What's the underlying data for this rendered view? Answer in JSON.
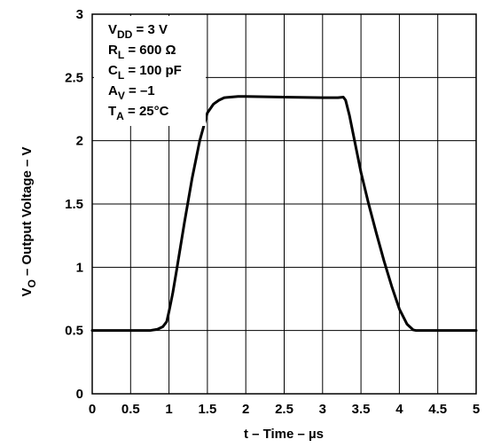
{
  "chart_data": {
    "type": "line",
    "title": "",
    "xlabel": "t – Time – µs",
    "ylabel": {
      "prefix": "V",
      "sub": "O",
      "rest": " – Output Voltage – V"
    },
    "xlim": [
      0,
      5
    ],
    "ylim": [
      0,
      3
    ],
    "x_ticks": [
      "0",
      "0.5",
      "1",
      "1.5",
      "2",
      "2.5",
      "3",
      "3.5",
      "4",
      "4.5",
      "5"
    ],
    "y_ticks": [
      "0",
      "0.5",
      "1",
      "1.5",
      "2",
      "2.5",
      "3"
    ],
    "grid": true,
    "annotations": [
      {
        "main": "V",
        "sub": "DD",
        "rest": " = 3 V"
      },
      {
        "main": "R",
        "sub": "L",
        "rest": " = 600 Ω"
      },
      {
        "main": "C",
        "sub": "L",
        "rest": " = 100  pF"
      },
      {
        "main": "A",
        "sub": "V",
        "rest": " = –1"
      },
      {
        "main": "T",
        "sub": "A",
        "rest": " = 25°C"
      }
    ],
    "series": [
      {
        "x": [
          0,
          0.5,
          0.75,
          0.85,
          0.92,
          0.97,
          1.0,
          1.05,
          1.1,
          1.2,
          1.3,
          1.4,
          1.5,
          1.58,
          1.65,
          1.72,
          1.8,
          1.9,
          2.0,
          2.5,
          3.0,
          3.2,
          3.27,
          3.3,
          3.35,
          3.4,
          3.5,
          3.6,
          3.7,
          3.8,
          3.9,
          4.0,
          4.1,
          4.18,
          4.22,
          4.3,
          4.5,
          5.0
        ],
        "y": [
          0.5,
          0.5,
          0.5,
          0.51,
          0.53,
          0.57,
          0.65,
          0.8,
          0.98,
          1.35,
          1.7,
          2.0,
          2.22,
          2.29,
          2.32,
          2.34,
          2.345,
          2.35,
          2.35,
          2.345,
          2.34,
          2.34,
          2.345,
          2.32,
          2.2,
          2.05,
          1.75,
          1.5,
          1.27,
          1.05,
          0.85,
          0.67,
          0.55,
          0.505,
          0.5,
          0.5,
          0.5,
          0.5
        ]
      }
    ]
  }
}
